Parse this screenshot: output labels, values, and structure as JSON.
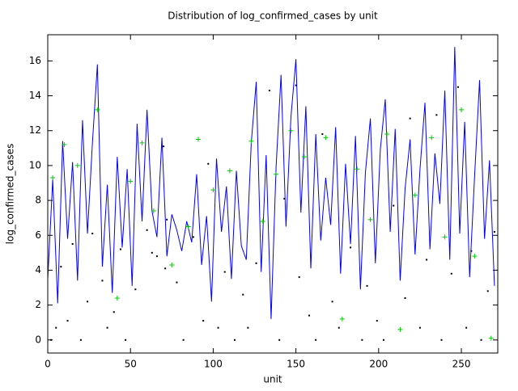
{
  "chart_data": {
    "type": "line",
    "title": "Distribution of log_confirmed_cases by unit",
    "x_label": "unit",
    "y_label": "log_confirmed_cases",
    "xlim": [
      0,
      272
    ],
    "ylim": [
      -0.75,
      17.5
    ],
    "xticks": [
      0,
      50,
      100,
      150,
      200,
      250
    ],
    "yticks": [
      0,
      2,
      4,
      6,
      8,
      10,
      12,
      14,
      16
    ],
    "series": [
      {
        "style": "dot",
        "color": "#000000",
        "x": [
          2,
          5,
          8,
          12,
          15,
          20,
          24,
          27,
          33,
          36,
          40,
          44,
          47,
          53,
          60,
          66,
          70,
          72,
          78,
          82,
          88,
          94,
          97,
          103,
          107,
          113,
          118,
          121,
          126,
          134,
          140,
          143,
          150,
          152,
          158,
          162,
          166,
          172,
          176,
          183,
          190,
          193,
          199,
          203,
          209,
          216,
          219,
          225,
          229,
          235,
          238,
          244,
          248,
          253,
          256,
          262,
          266,
          270,
          63,
          71
        ],
        "values": [
          0,
          0.7,
          4.2,
          1.1,
          5.5,
          0,
          2.2,
          6.1,
          3.4,
          0.7,
          1.6,
          5.2,
          0,
          2.9,
          6.3,
          4.8,
          11.1,
          6.9,
          3.3,
          0,
          5.9,
          1.1,
          10.1,
          0.7,
          3.9,
          0,
          2.6,
          0.7,
          4.4,
          14.3,
          0,
          8.1,
          14.6,
          3.6,
          1.4,
          0,
          11.8,
          2.2,
          0.7,
          5.3,
          0,
          3.1,
          1.1,
          0,
          7.7,
          2.4,
          12.7,
          0.7,
          4.6,
          12.9,
          0,
          3.8,
          14.5,
          0.7,
          5.1,
          0,
          2.8,
          6.2,
          5.0,
          4.1
        ]
      },
      {
        "style": "line",
        "color": "#0000ff",
        "x": [
          0,
          3,
          6,
          9,
          12,
          15,
          18,
          21,
          24,
          27,
          30,
          33,
          36,
          39,
          42,
          45,
          48,
          51,
          54,
          57,
          60,
          63,
          66,
          69,
          72,
          75,
          78,
          81,
          84,
          87,
          90,
          93,
          96,
          99,
          102,
          105,
          108,
          111,
          114,
          117,
          120,
          123,
          126,
          129,
          132,
          135,
          138,
          141,
          144,
          147,
          150,
          153,
          156,
          159,
          162,
          165,
          168,
          171,
          174,
          177,
          180,
          183,
          186,
          189,
          192,
          195,
          198,
          201,
          204,
          207,
          210,
          213,
          216,
          219,
          222,
          225,
          228,
          231,
          234,
          237,
          240,
          243,
          246,
          249,
          252,
          255,
          258,
          261,
          264,
          267,
          270
        ],
        "values": [
          3.5,
          9.2,
          2.1,
          11.4,
          5.8,
          10.2,
          3.4,
          12.6,
          6.1,
          11.3,
          15.8,
          4.2,
          8.9,
          2.7,
          10.5,
          5.3,
          9.8,
          3.1,
          12.4,
          6.8,
          13.2,
          7.4,
          5.9,
          11.6,
          4.8,
          7.2,
          6.3,
          5.1,
          6.8,
          5.6,
          9.5,
          4.3,
          7.1,
          2.2,
          10.4,
          6.2,
          8.8,
          3.5,
          9.7,
          5.4,
          4.6,
          11.3,
          14.8,
          3.9,
          10.6,
          1.2,
          9.9,
          15.2,
          6.5,
          12.8,
          16.1,
          7.3,
          13.4,
          4.1,
          11.8,
          5.7,
          9.3,
          6.6,
          12.2,
          3.8,
          10.1,
          5.5,
          11.7,
          2.9,
          9.6,
          12.7,
          4.4,
          10.9,
          13.8,
          6.2,
          12.1,
          3.4,
          8.7,
          11.5,
          4.9,
          9.8,
          13.6,
          5.2,
          10.7,
          7.8,
          14.3,
          4.6,
          16.8,
          6.1,
          12.5,
          3.6,
          9.4,
          14.9,
          5.8,
          10.3,
          3.1
        ]
      },
      {
        "style": "cross",
        "color": "#00cc00",
        "x": [
          3,
          10,
          18,
          30,
          42,
          50,
          57,
          64,
          75,
          85,
          91,
          100,
          110,
          123,
          130,
          138,
          147,
          155,
          168,
          178,
          187,
          195,
          205,
          213,
          222,
          232,
          240,
          250,
          258,
          268
        ],
        "values": [
          9.3,
          11.2,
          10.0,
          13.2,
          2.4,
          9.1,
          11.3,
          7.4,
          4.3,
          6.5,
          11.5,
          8.6,
          9.7,
          11.4,
          6.8,
          9.5,
          12.0,
          10.5,
          11.6,
          1.2,
          9.8,
          6.9,
          11.8,
          0.6,
          8.3,
          11.6,
          5.9,
          13.2,
          4.8,
          0.1
        ]
      }
    ]
  }
}
